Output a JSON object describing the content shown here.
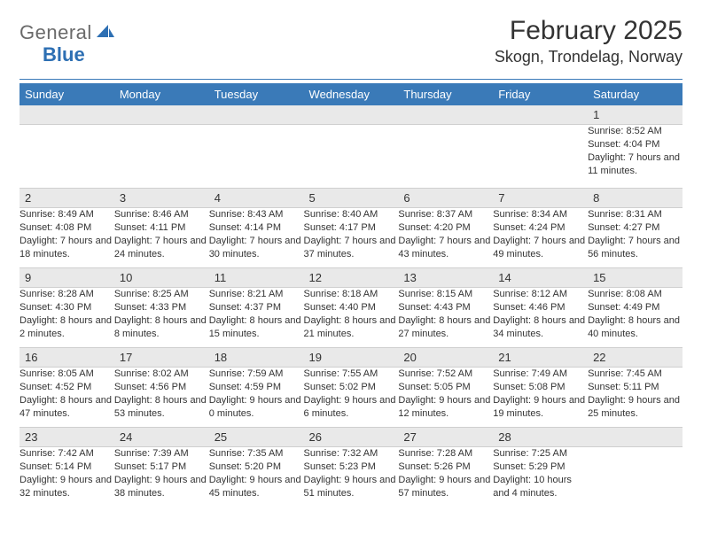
{
  "brand": {
    "text_gray": "General",
    "text_blue": "Blue",
    "blue_color": "#2d6fb3",
    "gray_color": "#6a6a6a"
  },
  "title": "February 2025",
  "location": "Skogn, Trondelag, Norway",
  "colors": {
    "header_bar": "#3a7ab8",
    "daynum_bg": "#e9e9e9",
    "rule": "#3a7ab8",
    "text": "#333333",
    "white": "#ffffff"
  },
  "weekdays": [
    "Sunday",
    "Monday",
    "Tuesday",
    "Wednesday",
    "Thursday",
    "Friday",
    "Saturday"
  ],
  "weeks": [
    [
      null,
      null,
      null,
      null,
      null,
      null,
      {
        "n": "1",
        "sr": "8:52 AM",
        "ss": "4:04 PM",
        "dl": "7 hours and 11 minutes."
      }
    ],
    [
      {
        "n": "2",
        "sr": "8:49 AM",
        "ss": "4:08 PM",
        "dl": "7 hours and 18 minutes."
      },
      {
        "n": "3",
        "sr": "8:46 AM",
        "ss": "4:11 PM",
        "dl": "7 hours and 24 minutes."
      },
      {
        "n": "4",
        "sr": "8:43 AM",
        "ss": "4:14 PM",
        "dl": "7 hours and 30 minutes."
      },
      {
        "n": "5",
        "sr": "8:40 AM",
        "ss": "4:17 PM",
        "dl": "7 hours and 37 minutes."
      },
      {
        "n": "6",
        "sr": "8:37 AM",
        "ss": "4:20 PM",
        "dl": "7 hours and 43 minutes."
      },
      {
        "n": "7",
        "sr": "8:34 AM",
        "ss": "4:24 PM",
        "dl": "7 hours and 49 minutes."
      },
      {
        "n": "8",
        "sr": "8:31 AM",
        "ss": "4:27 PM",
        "dl": "7 hours and 56 minutes."
      }
    ],
    [
      {
        "n": "9",
        "sr": "8:28 AM",
        "ss": "4:30 PM",
        "dl": "8 hours and 2 minutes."
      },
      {
        "n": "10",
        "sr": "8:25 AM",
        "ss": "4:33 PM",
        "dl": "8 hours and 8 minutes."
      },
      {
        "n": "11",
        "sr": "8:21 AM",
        "ss": "4:37 PM",
        "dl": "8 hours and 15 minutes."
      },
      {
        "n": "12",
        "sr": "8:18 AM",
        "ss": "4:40 PM",
        "dl": "8 hours and 21 minutes."
      },
      {
        "n": "13",
        "sr": "8:15 AM",
        "ss": "4:43 PM",
        "dl": "8 hours and 27 minutes."
      },
      {
        "n": "14",
        "sr": "8:12 AM",
        "ss": "4:46 PM",
        "dl": "8 hours and 34 minutes."
      },
      {
        "n": "15",
        "sr": "8:08 AM",
        "ss": "4:49 PM",
        "dl": "8 hours and 40 minutes."
      }
    ],
    [
      {
        "n": "16",
        "sr": "8:05 AM",
        "ss": "4:52 PM",
        "dl": "8 hours and 47 minutes."
      },
      {
        "n": "17",
        "sr": "8:02 AM",
        "ss": "4:56 PM",
        "dl": "8 hours and 53 minutes."
      },
      {
        "n": "18",
        "sr": "7:59 AM",
        "ss": "4:59 PM",
        "dl": "9 hours and 0 minutes."
      },
      {
        "n": "19",
        "sr": "7:55 AM",
        "ss": "5:02 PM",
        "dl": "9 hours and 6 minutes."
      },
      {
        "n": "20",
        "sr": "7:52 AM",
        "ss": "5:05 PM",
        "dl": "9 hours and 12 minutes."
      },
      {
        "n": "21",
        "sr": "7:49 AM",
        "ss": "5:08 PM",
        "dl": "9 hours and 19 minutes."
      },
      {
        "n": "22",
        "sr": "7:45 AM",
        "ss": "5:11 PM",
        "dl": "9 hours and 25 minutes."
      }
    ],
    [
      {
        "n": "23",
        "sr": "7:42 AM",
        "ss": "5:14 PM",
        "dl": "9 hours and 32 minutes."
      },
      {
        "n": "24",
        "sr": "7:39 AM",
        "ss": "5:17 PM",
        "dl": "9 hours and 38 minutes."
      },
      {
        "n": "25",
        "sr": "7:35 AM",
        "ss": "5:20 PM",
        "dl": "9 hours and 45 minutes."
      },
      {
        "n": "26",
        "sr": "7:32 AM",
        "ss": "5:23 PM",
        "dl": "9 hours and 51 minutes."
      },
      {
        "n": "27",
        "sr": "7:28 AM",
        "ss": "5:26 PM",
        "dl": "9 hours and 57 minutes."
      },
      {
        "n": "28",
        "sr": "7:25 AM",
        "ss": "5:29 PM",
        "dl": "10 hours and 4 minutes."
      },
      null
    ]
  ],
  "labels": {
    "sunrise": "Sunrise:",
    "sunset": "Sunset:",
    "daylight": "Daylight:"
  }
}
